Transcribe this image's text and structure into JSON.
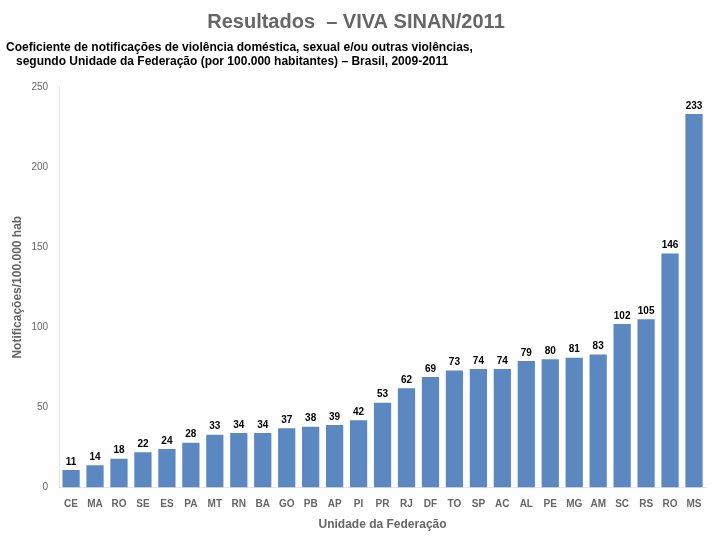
{
  "chart_data": {
    "type": "bar",
    "title": "Resultados  – VIVA SINAN/2011",
    "subtitle": [
      "Coeficiente de notificações de violência doméstica, sexual e/ou outras violências,",
      "   segundo Unidade da Federação (por 100.000 habitantes) – Brasil, 2009-2011"
    ],
    "xlabel": "Unidade da Federação",
    "ylabel": "Notificações/100.000 hab",
    "categories": [
      "CE",
      "MA",
      "RO",
      "SE",
      "ES",
      "PA",
      "MT",
      "RN",
      "BA",
      "GO",
      "PB",
      "AP",
      "PI",
      "PR",
      "RJ",
      "DF",
      "TO",
      "SP",
      "AC",
      "AL",
      "PE",
      "MG",
      "AM",
      "SC",
      "RS",
      "RO",
      "MS"
    ],
    "values": [
      11,
      14,
      18,
      22,
      24,
      28,
      33,
      34,
      34,
      37,
      38,
      39,
      42,
      53,
      62,
      69,
      73,
      74,
      74,
      79,
      80,
      81,
      83,
      102,
      105,
      146,
      233
    ],
    "color": "#5B88C0",
    "ylim": [
      0,
      250
    ],
    "yticks": [
      0,
      50,
      100,
      150,
      200,
      250
    ],
    "grid": false,
    "data_labels": true
  }
}
